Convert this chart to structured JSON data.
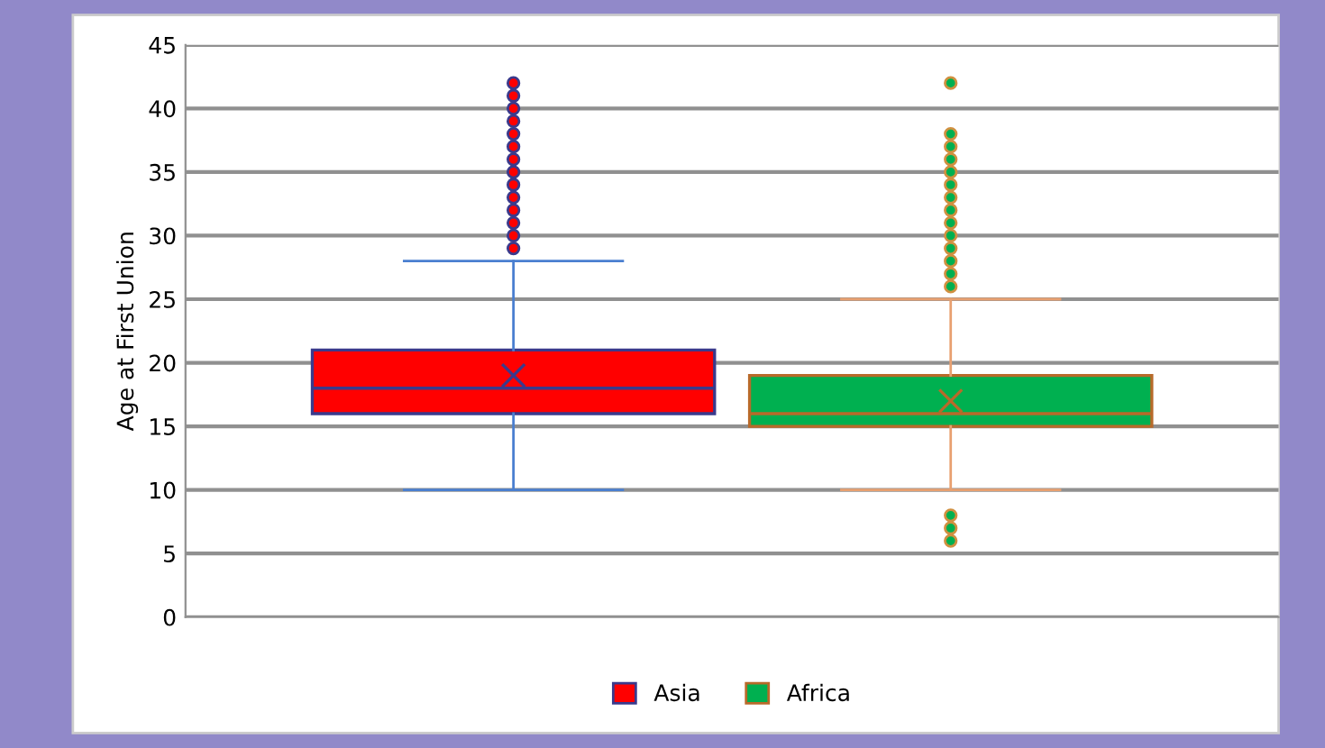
{
  "chart_data": {
    "type": "box",
    "ylabel": "Age at First Union",
    "categories": [
      null
    ],
    "series": [
      {
        "name": "Asia",
        "color": "#ff0000",
        "boxes": [
          {
            "low": 10,
            "q1": 16,
            "median": 18,
            "q3": 21,
            "high": 28,
            "mean": 19,
            "outliers": [
              29,
              30,
              31,
              32,
              33,
              34,
              35,
              36,
              37,
              38,
              39,
              40,
              41,
              42
            ]
          }
        ]
      },
      {
        "name": "Africa",
        "color": "#00b050",
        "boxes": [
          {
            "low": 10,
            "q1": 15,
            "median": 16,
            "q3": 19,
            "high": 25,
            "mean": 17,
            "outliers": [
              6,
              7,
              8,
              26,
              27,
              28,
              29,
              30,
              31,
              32,
              33,
              34,
              35,
              36,
              37,
              38,
              42
            ]
          }
        ]
      }
    ],
    "ylim": [
      0,
      45
    ],
    "yticks": [
      0,
      5,
      10,
      15,
      20,
      25,
      30,
      35,
      40,
      45
    ],
    "grid": "y",
    "legend": "bottom"
  }
}
